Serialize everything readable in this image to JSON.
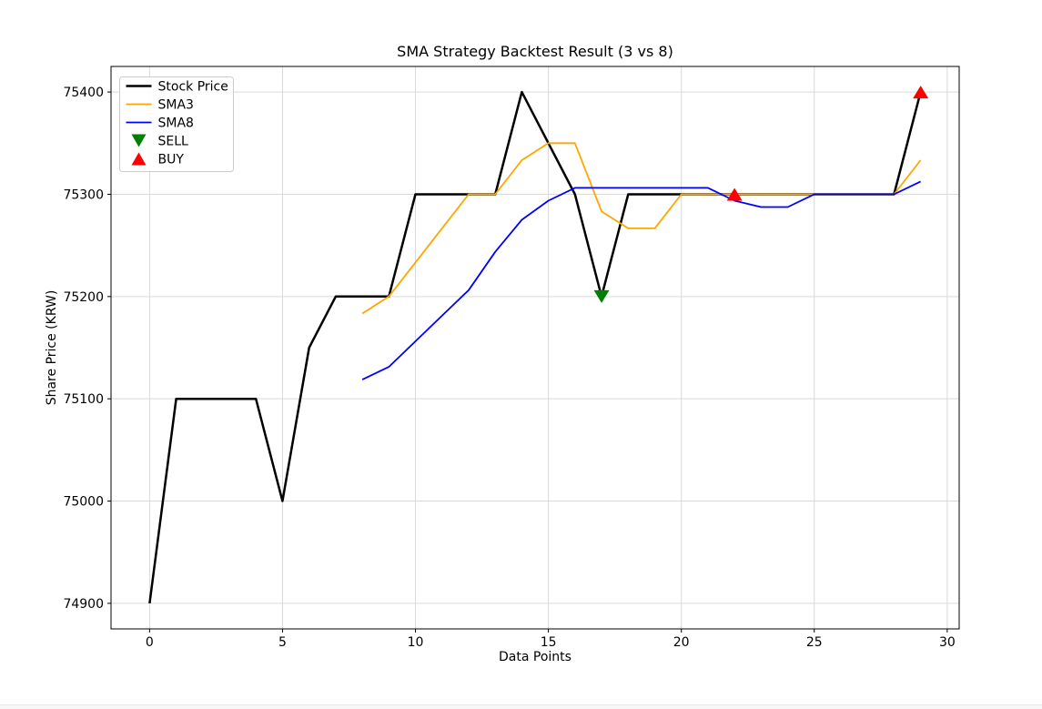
{
  "figure": {
    "title": "SMA Strategy Backtest Result (3 vs 8)",
    "xlabel": "Data Points",
    "ylabel": "Share Price (KRW)"
  },
  "chart_data": {
    "type": "line",
    "title": "SMA Strategy Backtest Result (3 vs 8)",
    "xlabel": "Data Points",
    "ylabel": "Share Price (KRW)",
    "x_ticks": [
      0,
      5,
      10,
      15,
      20,
      25,
      30
    ],
    "y_ticks": [
      74900,
      75000,
      75100,
      75200,
      75300,
      75400
    ],
    "xlim": [
      -1.45,
      30.45
    ],
    "ylim": [
      74875,
      75425
    ],
    "grid": true,
    "legend_position": "upper-left",
    "colors": {
      "background": "#ffffff",
      "grid": "#d9d9d9",
      "spine": "#000000",
      "stock": "#000000",
      "sma3": "#ffa500",
      "sma8": "#0000ff",
      "sell": "#008000",
      "buy": "#ff0000"
    },
    "series": [
      {
        "id": "stock-price",
        "name": "Stock Price",
        "color": "#000000",
        "width": 2.5,
        "x": [
          0,
          1,
          2,
          3,
          4,
          5,
          6,
          7,
          8,
          9,
          10,
          11,
          12,
          13,
          14,
          15,
          16,
          17,
          18,
          19,
          20,
          21,
          22,
          23,
          24,
          25,
          26,
          27,
          28,
          29
        ],
        "values": [
          74900,
          75100,
          75100,
          75100,
          75100,
          75000,
          75150,
          75200,
          75200,
          75200,
          75300,
          75300,
          75300,
          75300,
          75400,
          75350,
          75300,
          75200,
          75300,
          75300,
          75300,
          75300,
          75300,
          75300,
          75300,
          75300,
          75300,
          75300,
          75300,
          75400
        ]
      },
      {
        "id": "sma3",
        "name": "SMA3",
        "color": "#ffa500",
        "width": 1.8,
        "x": [
          8,
          9,
          10,
          11,
          12,
          13,
          14,
          15,
          16,
          17,
          18,
          19,
          20,
          21,
          22,
          23,
          24,
          25,
          26,
          27,
          28,
          29
        ],
        "values": [
          75183.33,
          75200,
          75233.33,
          75266.67,
          75300,
          75300,
          75333.33,
          75350,
          75350,
          75283.33,
          75266.67,
          75266.67,
          75300,
          75300,
          75300,
          75300,
          75300,
          75300,
          75300,
          75300,
          75300,
          75333.33
        ]
      },
      {
        "id": "sma8",
        "name": "SMA8",
        "color": "#0000ff",
        "width": 1.8,
        "x": [
          8,
          9,
          10,
          11,
          12,
          13,
          14,
          15,
          16,
          17,
          18,
          19,
          20,
          21,
          22,
          23,
          24,
          25,
          26,
          27,
          28,
          29
        ],
        "values": [
          75118.75,
          75131.25,
          75156.25,
          75181.25,
          75206.25,
          75243.75,
          75275,
          75293.75,
          75306.25,
          75306.25,
          75306.25,
          75306.25,
          75306.25,
          75306.25,
          75293.75,
          75287.5,
          75287.5,
          75300,
          75300,
          75300,
          75300,
          75312.5
        ]
      }
    ],
    "markers": [
      {
        "id": "sell",
        "name": "SELL",
        "shape": "triangle-down",
        "color": "#008000",
        "points": [
          {
            "x": 17,
            "y": 75200
          }
        ]
      },
      {
        "id": "buy",
        "name": "BUY",
        "shape": "triangle-up",
        "color": "#ff0000",
        "points": [
          {
            "x": 22,
            "y": 75300
          },
          {
            "x": 29,
            "y": 75400
          }
        ]
      }
    ],
    "legend": [
      {
        "label": "Stock Price",
        "swatch": "line",
        "color": "#000000",
        "width": 2.5
      },
      {
        "label": "SMA3",
        "swatch": "line",
        "color": "#ffa500",
        "width": 1.8
      },
      {
        "label": "SMA8",
        "swatch": "line",
        "color": "#0000ff",
        "width": 1.8
      },
      {
        "label": "SELL",
        "swatch": "triangle-down",
        "color": "#008000"
      },
      {
        "label": "BUY",
        "swatch": "triangle-up",
        "color": "#ff0000"
      }
    ]
  }
}
